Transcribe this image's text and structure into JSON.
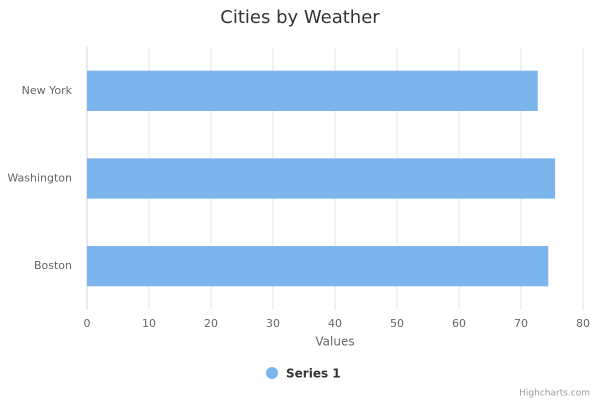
{
  "chart_data": {
    "type": "bar",
    "title": "Cities by Weather",
    "categories": [
      "New York",
      "Washington",
      "Boston"
    ],
    "series": [
      {
        "name": "Series 1",
        "color": "#7cb5ec",
        "values": [
          72.7,
          75.5,
          74.4
        ]
      }
    ],
    "x_label": "Values",
    "xlim": [
      0,
      80
    ],
    "xticks": [
      0,
      10,
      20,
      30,
      40,
      50,
      60,
      70,
      80
    ],
    "grid": true,
    "credits": "Highcharts.com"
  }
}
